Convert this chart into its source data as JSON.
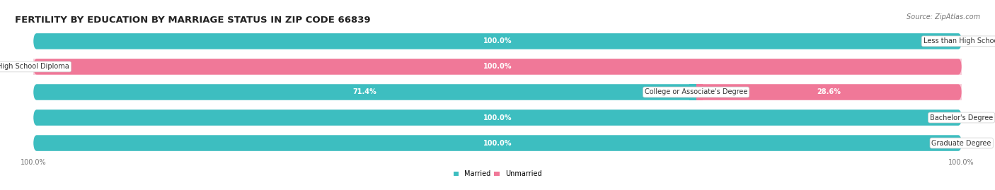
{
  "title": "FERTILITY BY EDUCATION BY MARRIAGE STATUS IN ZIP CODE 66839",
  "source": "Source: ZipAtlas.com",
  "categories": [
    "Less than High School",
    "High School Diploma",
    "College or Associate's Degree",
    "Bachelor's Degree",
    "Graduate Degree"
  ],
  "married": [
    100.0,
    0.0,
    71.4,
    100.0,
    100.0
  ],
  "unmarried": [
    0.0,
    100.0,
    28.6,
    0.0,
    0.0
  ],
  "married_color": "#3dbec0",
  "unmarried_color": "#f07898",
  "married_light": "#b8e4e6",
  "unmarried_light": "#f8d0dc",
  "bg_row_color": "#e8e8ec",
  "title_fontsize": 9.5,
  "label_fontsize": 7.0,
  "value_fontsize": 7.0,
  "tick_fontsize": 7.0,
  "source_fontsize": 7.0,
  "figsize": [
    14.06,
    2.69
  ],
  "dpi": 100
}
